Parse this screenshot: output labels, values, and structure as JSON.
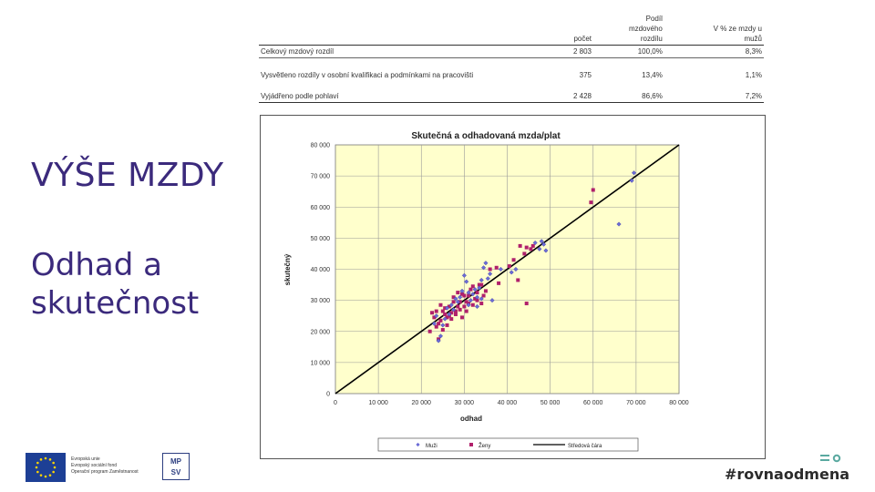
{
  "slide": {
    "title": "VÝŠE MZDY",
    "subtitle_line1": "Odhad a",
    "subtitle_line2": "skutečnost",
    "hashtag": "#rovnaodmena"
  },
  "table": {
    "headers": [
      "počet",
      "Podíl mzdového rozdílu",
      "V % ze mzdy u mužů"
    ],
    "header_lines": [
      [
        "",
        "Podíl",
        ""
      ],
      [
        "",
        "mzdového",
        "V % ze mzdy u"
      ],
      [
        "počet",
        "rozdílu",
        "mužů"
      ]
    ],
    "rows": [
      {
        "label": "Celkový mzdový rozdíl",
        "count": "2 803",
        "share": "100,0%",
        "pct": "8,3%"
      },
      {
        "label": "Vysvětleno rozdíly v osobní kvalifikaci a podmínkami na pracovišti",
        "count": "375",
        "share": "13,4%",
        "pct": "1,1%"
      },
      {
        "label": "Vyjádřeno podle pohlaví",
        "count": "2 428",
        "share": "86,6%",
        "pct": "7,2%"
      }
    ]
  },
  "logos": {
    "eu_line1": "Evropská unie",
    "eu_line2": "Evropský sociální fond",
    "eu_line3": "Operační program Zaměstnanost",
    "mpsv_line1": "MP",
    "mpsv_line2": "SV"
  },
  "colors": {
    "plot_bg": "#ffffcc",
    "men": "#6b6bd6",
    "women": "#b0206b",
    "line": "#000000",
    "title_purple": "#3b2a7c"
  },
  "chart_data": {
    "type": "scatter",
    "title": "Skutečná a odhadovaná mzda/plat",
    "xlabel": "odhad",
    "ylabel": "skutečný",
    "xlim": [
      0,
      80000
    ],
    "ylim": [
      0,
      80000
    ],
    "xticks": [
      "0",
      "10 000",
      "20 000",
      "30 000",
      "40 000",
      "50 000",
      "60 000",
      "70 000",
      "80 000"
    ],
    "yticks": [
      "0",
      "10 000",
      "20 000",
      "30 000",
      "40 000",
      "50 000",
      "60 000",
      "70 000",
      "80 000"
    ],
    "grid": true,
    "legend_position": "bottom",
    "series": [
      {
        "name": "Muži",
        "marker": "diamond",
        "points": [
          [
            69500,
            71000
          ],
          [
            69000,
            68500
          ],
          [
            66000,
            54500
          ],
          [
            49000,
            46000
          ],
          [
            48000,
            49000
          ],
          [
            46500,
            48500
          ],
          [
            42000,
            40000
          ],
          [
            41000,
            39000
          ],
          [
            38500,
            40000
          ],
          [
            36000,
            38500
          ],
          [
            35500,
            37000
          ],
          [
            35000,
            42000
          ],
          [
            34500,
            40500
          ],
          [
            34000,
            36500
          ],
          [
            33500,
            34000
          ],
          [
            33000,
            31000
          ],
          [
            32500,
            33500
          ],
          [
            32000,
            32000
          ],
          [
            31500,
            30000
          ],
          [
            31000,
            32500
          ],
          [
            30500,
            36000
          ],
          [
            30000,
            38000
          ],
          [
            29500,
            33000
          ],
          [
            29000,
            31000
          ],
          [
            28500,
            29500
          ],
          [
            28000,
            30500
          ],
          [
            27500,
            27000
          ],
          [
            27000,
            28500
          ],
          [
            26500,
            25500
          ],
          [
            26000,
            27500
          ],
          [
            25500,
            24000
          ],
          [
            25000,
            22000
          ],
          [
            24500,
            18500
          ],
          [
            24000,
            17000
          ],
          [
            23500,
            25000
          ],
          [
            23000,
            22500
          ],
          [
            36500,
            30000
          ],
          [
            33000,
            28000
          ],
          [
            31000,
            28500
          ],
          [
            34000,
            30500
          ],
          [
            48500,
            48000
          ],
          [
            47500,
            46500
          ]
        ]
      },
      {
        "name": "Ženy",
        "marker": "square",
        "points": [
          [
            60000,
            65500
          ],
          [
            59500,
            61500
          ],
          [
            46000,
            47500
          ],
          [
            45500,
            46500
          ],
          [
            44500,
            47000
          ],
          [
            44000,
            45000
          ],
          [
            43000,
            47500
          ],
          [
            41500,
            43000
          ],
          [
            40500,
            41000
          ],
          [
            42500,
            36500
          ],
          [
            44500,
            29000
          ],
          [
            38000,
            35500
          ],
          [
            37500,
            40500
          ],
          [
            36000,
            40000
          ],
          [
            35000,
            33000
          ],
          [
            34500,
            31500
          ],
          [
            34000,
            35000
          ],
          [
            33500,
            35000
          ],
          [
            33000,
            32500
          ],
          [
            32500,
            30500
          ],
          [
            32000,
            34500
          ],
          [
            31500,
            33500
          ],
          [
            31000,
            31500
          ],
          [
            30500,
            29500
          ],
          [
            30000,
            31500
          ],
          [
            29500,
            32000
          ],
          [
            29000,
            29500
          ],
          [
            28500,
            28000
          ],
          [
            28000,
            26500
          ],
          [
            27500,
            29500
          ],
          [
            27000,
            26000
          ],
          [
            26500,
            25000
          ],
          [
            26000,
            24500
          ],
          [
            25500,
            27500
          ],
          [
            25000,
            26500
          ],
          [
            24500,
            23500
          ],
          [
            24000,
            22500
          ],
          [
            23500,
            26500
          ],
          [
            23000,
            24500
          ],
          [
            22500,
            26000
          ],
          [
            22000,
            20000
          ],
          [
            24000,
            17500
          ],
          [
            25000,
            20500
          ],
          [
            26000,
            22000
          ],
          [
            27000,
            24000
          ],
          [
            28000,
            25500
          ],
          [
            29000,
            27000
          ],
          [
            30000,
            28000
          ],
          [
            31000,
            29000
          ],
          [
            32000,
            28500
          ],
          [
            33000,
            30000
          ],
          [
            34000,
            29000
          ],
          [
            30500,
            26500
          ],
          [
            29500,
            24500
          ],
          [
            28500,
            32500
          ],
          [
            27500,
            31000
          ],
          [
            26500,
            28000
          ],
          [
            25500,
            25500
          ],
          [
            24500,
            28500
          ],
          [
            23500,
            21500
          ]
        ]
      }
    ],
    "reference_line": {
      "name": "Středová čára",
      "from": [
        0,
        0
      ],
      "to": [
        80000,
        80000
      ]
    }
  }
}
